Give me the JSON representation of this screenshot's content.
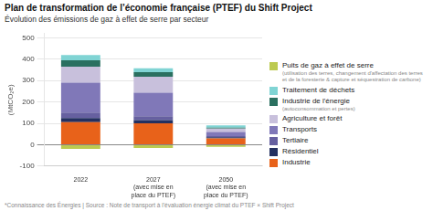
{
  "chart_data": {
    "type": "bar",
    "title": "Plan de transformation de l’économie française (PTEF) du Shift Project",
    "subtitle": "Évolution des émissions de gaz à effet de serre par secteur",
    "ylabel": "(MtCO₂e)",
    "footnote": "*Connaissance des Énergies | Source : Note de transport à l’évaluation énergie climat du PTEF × Shift Project",
    "categories": [
      "2022",
      "2027\n(avec mise en place du PTEF)",
      "2050\n(avec mise en place du PTEF)"
    ],
    "series": [
      {
        "name": "Industrie",
        "color": "#E8621A",
        "values": [
          105,
          100,
          30
        ]
      },
      {
        "name": "Résidentiel",
        "color": "#243060",
        "values": [
          20,
          15,
          5
        ]
      },
      {
        "name": "Tertiaire",
        "color": "#6660A0",
        "values": [
          25,
          18,
          5
        ]
      },
      {
        "name": "Transports",
        "color": "#8078B8",
        "values": [
          140,
          110,
          20
        ]
      },
      {
        "name": "Agriculture et forêt",
        "color": "#C8C0DC",
        "values": [
          75,
          75,
          15
        ]
      },
      {
        "name": "Industrie de l'énergie",
        "color": "#2A7060",
        "values": [
          30,
          22,
          5
        ]
      },
      {
        "name": "Traitement de déchets",
        "color": "#80D4D4",
        "values": [
          25,
          18,
          10
        ]
      },
      {
        "name": "Puits de gaz à effet de serre",
        "color": "#BCCA50",
        "values": [
          -20,
          -15,
          -10
        ]
      }
    ],
    "annotations": [
      {
        "series": "Puits de gaz à effet de serre",
        "text": "(utilisation des terres, changement d'affectation des terres\net de la foresterie & capture et séquestration de carbone)"
      },
      {
        "series": "Industrie de l'énergie",
        "text": "(autoconsommation et pertes)"
      }
    ],
    "stacked": true,
    "legend": "right",
    "grid": true,
    "ylim": [
      -100,
      520
    ],
    "yticks": [
      -100,
      0,
      100,
      200,
      300,
      400,
      500
    ]
  }
}
